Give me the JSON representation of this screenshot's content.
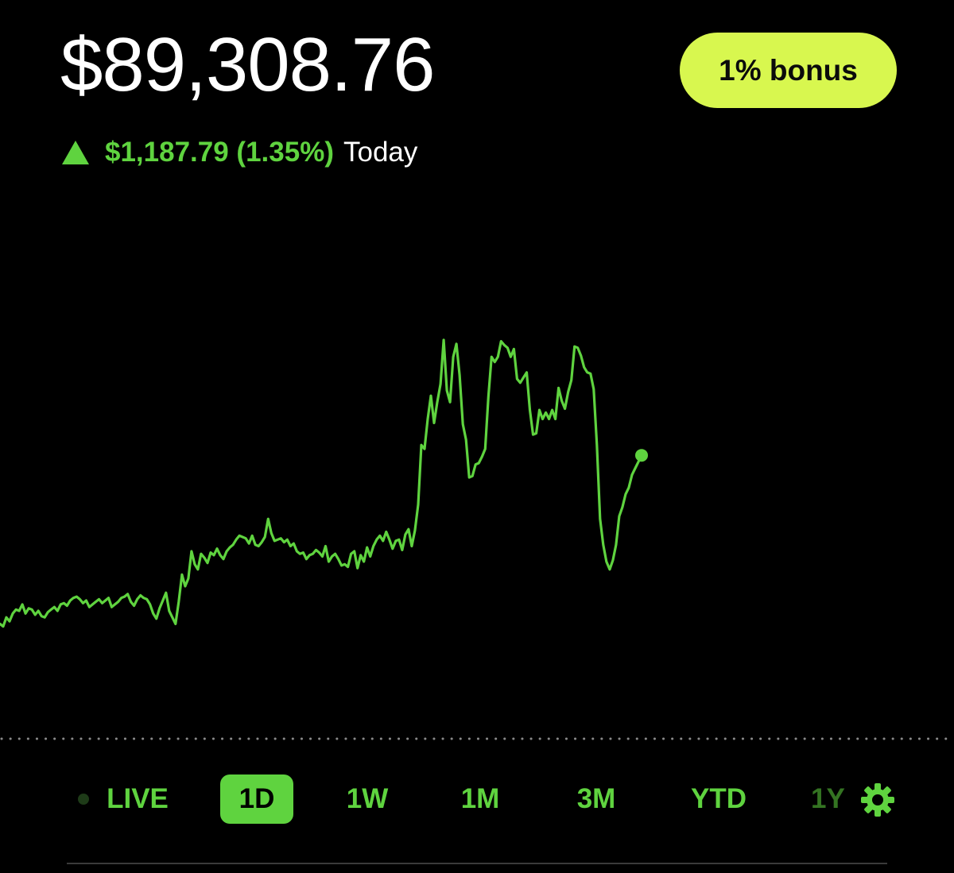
{
  "header": {
    "balance": "$89,308.76",
    "bonus_label": "1% bonus",
    "change_value": "$1,187.79 (1.35%)",
    "change_period": "Today",
    "trend_icon": "triangle-up-icon"
  },
  "range_selector": {
    "live_label": "LIVE",
    "items": [
      {
        "label": "1D",
        "active": true
      },
      {
        "label": "1W",
        "active": false
      },
      {
        "label": "1M",
        "active": false
      },
      {
        "label": "3M",
        "active": false
      },
      {
        "label": "YTD",
        "active": false
      },
      {
        "label": "1Y",
        "active": false
      }
    ],
    "settings_icon": "gear-icon"
  },
  "colors": {
    "accent_green": "#5fd33f",
    "bonus_bg": "#d8f74f",
    "background": "#000000",
    "reference_dots": "#8a8a8a",
    "live_dot": "#1e3b18"
  },
  "chart_data": {
    "type": "line",
    "title": "",
    "xlabel": "",
    "ylabel": "",
    "grid": false,
    "reference_line": "dotted",
    "x": [
      0,
      1,
      2,
      3,
      4,
      5,
      6,
      7,
      8,
      9,
      10,
      11,
      12,
      13,
      14,
      15,
      16,
      17,
      18,
      19,
      20,
      21,
      22,
      23,
      24,
      25,
      26,
      27,
      28,
      29,
      30,
      31,
      32,
      33,
      34,
      35,
      36,
      37,
      38,
      39,
      40,
      41,
      42,
      43,
      44,
      45,
      46,
      47,
      48,
      49,
      50,
      51,
      52,
      53,
      54,
      55,
      56,
      57,
      58,
      59,
      60,
      61,
      62,
      63,
      64,
      65,
      66,
      67,
      68,
      69,
      70,
      71,
      72,
      73,
      74,
      75,
      76,
      77,
      78,
      79,
      80,
      81,
      82,
      83,
      84,
      85,
      86,
      87,
      88,
      89,
      90,
      91,
      92,
      93,
      94,
      95,
      96,
      97,
      98,
      99,
      100,
      101,
      102,
      103,
      104,
      105,
      106,
      107,
      108,
      109,
      110,
      111,
      112,
      113,
      114,
      115,
      116,
      117,
      118,
      119,
      120,
      121,
      122,
      123,
      124,
      125,
      126,
      127,
      128,
      129,
      130,
      131,
      132,
      133,
      134,
      135,
      136,
      137,
      138,
      139,
      140,
      141,
      142,
      143,
      144,
      145,
      146,
      147,
      148,
      149,
      150,
      151,
      152,
      153,
      154,
      155,
      156,
      157,
      158,
      159,
      160,
      161,
      162,
      163,
      164,
      165,
      166,
      167,
      168,
      169,
      170,
      171,
      172,
      173,
      174,
      175,
      176,
      177,
      178,
      179,
      180,
      181,
      182,
      183,
      184,
      185,
      186,
      187,
      188,
      189,
      190,
      191,
      192,
      193,
      194,
      195,
      196,
      197,
      198,
      199,
      200,
      201
    ],
    "series": [
      {
        "values": [
          20,
          18,
          25,
          22,
          28,
          31,
          30,
          35,
          28,
          32,
          31,
          27,
          30,
          26,
          25,
          29,
          31,
          33,
          30,
          35,
          36,
          34,
          38,
          40,
          41,
          39,
          36,
          38,
          33,
          35,
          37,
          39,
          36,
          38,
          40,
          33,
          35,
          37,
          40,
          41,
          43,
          37,
          34,
          39,
          42,
          40,
          39,
          35,
          28,
          24,
          32,
          38,
          44,
          30,
          25,
          20,
          37,
          58,
          49,
          55,
          76,
          66,
          62,
          74,
          71,
          67,
          75,
          73,
          78,
          73,
          70,
          76,
          79,
          81,
          85,
          88,
          87,
          86,
          82,
          88,
          81,
          80,
          83,
          87,
          101,
          90,
          84,
          85,
          86,
          83,
          85,
          80,
          82,
          76,
          74,
          75,
          70,
          73,
          74,
          77,
          75,
          72,
          80,
          68,
          72,
          74,
          70,
          65,
          66,
          64,
          74,
          76,
          63,
          73,
          68,
          79,
          72,
          80,
          85,
          88,
          84,
          91,
          85,
          78,
          84,
          85,
          77,
          89,
          93,
          80,
          92,
          112,
          158,
          155,
          178,
          196,
          175,
          191,
          205,
          239,
          200,
          191,
          226,
          236,
          212,
          174,
          162,
          133,
          134,
          143,
          144,
          149,
          155,
          195,
          226,
          222,
          226,
          238,
          235,
          233,
          226,
          232,
          209,
          206,
          210,
          214,
          185,
          166,
          167,
          185,
          178,
          183,
          178,
          185,
          178,
          202,
          192,
          186,
          199,
          208,
          234,
          233,
          227,
          218,
          214,
          213,
          201,
          158,
          101,
          81,
          68,
          62,
          69,
          81,
          103,
          110,
          120,
          125,
          135,
          140,
          145,
          150
        ]
      }
    ]
  }
}
